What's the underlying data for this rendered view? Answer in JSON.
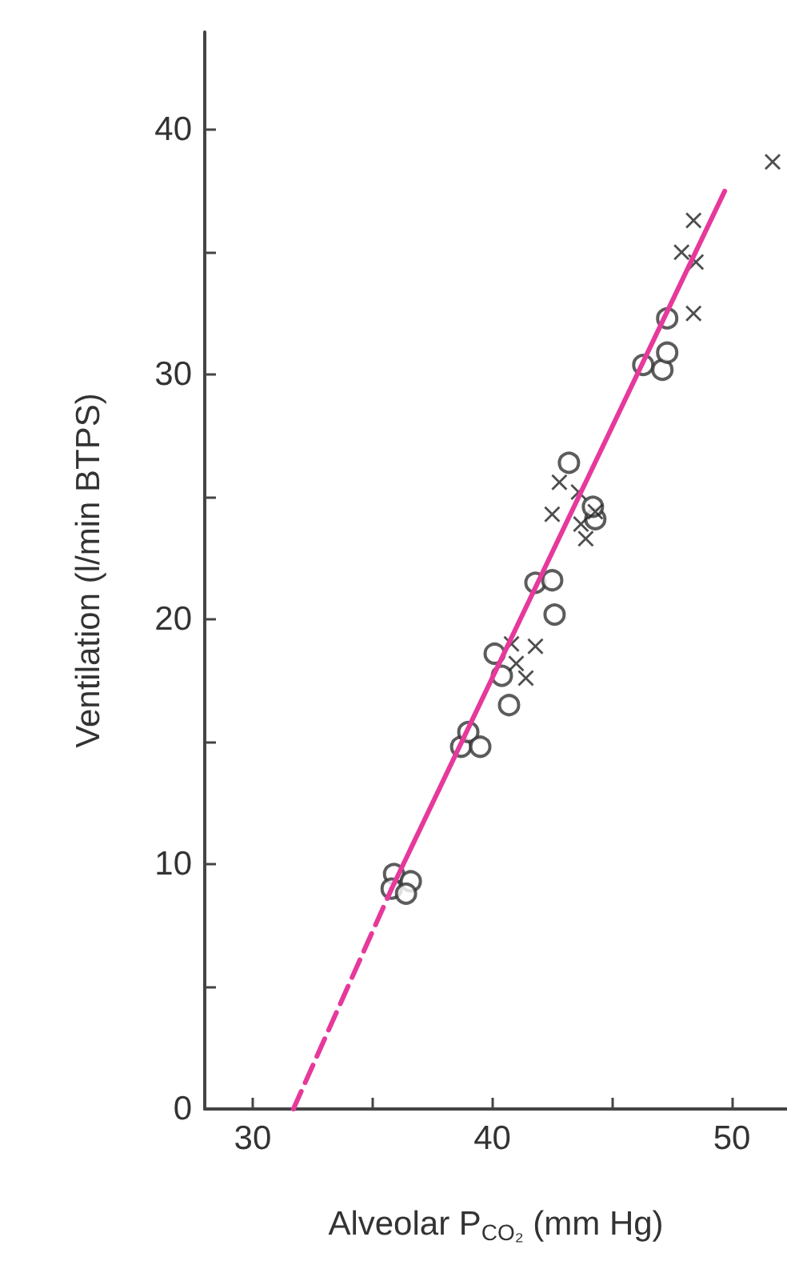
{
  "chart_data": {
    "type": "scatter",
    "xlabel": "Alveolar P$_{CO₂}$ (mm Hg)",
    "ylabel": "Ventilation (l/min BTPS)",
    "xlim": [
      28,
      52.3
    ],
    "ylim": [
      0,
      44
    ],
    "xticks": [
      30,
      {
        "value": 35,
        "label": null
      },
      40,
      {
        "value": 45,
        "label": null
      },
      50
    ],
    "yticks": [
      0,
      {
        "value": 5,
        "label": null
      },
      10,
      {
        "value": 15,
        "label": null
      },
      20,
      {
        "value": 25,
        "label": null
      },
      30,
      {
        "value": 35,
        "label": null
      },
      40
    ],
    "grid": false,
    "series": [
      {
        "marker": "circle",
        "color": "#333333",
        "x": [
          35.9,
          36.6,
          35.8,
          36.4,
          38.7,
          39.0,
          39.5,
          40.7,
          40.4,
          40.1,
          42.6,
          41.8,
          42.5,
          44.3,
          44.2,
          43.2,
          46.3,
          47.1,
          47.3,
          47.3
        ],
        "values": [
          9.6,
          9.3,
          9.0,
          8.8,
          14.8,
          15.4,
          14.8,
          16.5,
          17.7,
          18.6,
          20.2,
          21.5,
          21.6,
          24.1,
          24.6,
          26.4,
          30.4,
          30.2,
          30.9,
          32.3
        ]
      },
      {
        "marker": "cross",
        "color": "#222222",
        "x": [
          40.8,
          41.8,
          41.0,
          41.4,
          42.5,
          42.8,
          43.6,
          43.7,
          43.9,
          44.3,
          48.4,
          47.9,
          48.5,
          48.4,
          51.7
        ],
        "values": [
          19.0,
          18.9,
          18.2,
          17.6,
          24.3,
          25.6,
          25.2,
          23.9,
          23.3,
          24.4,
          32.5,
          35.0,
          34.6,
          36.3,
          38.7
        ]
      },
      {
        "type": "line",
        "color": "#e6399b",
        "line_style": "dashed",
        "marker": "none",
        "x": [
          31.7,
          35.8
        ],
        "values": [
          0,
          9
        ]
      },
      {
        "type": "line",
        "color": "#e6399b",
        "line_style": "solid",
        "marker": "none",
        "x": [
          35.8,
          49.7
        ],
        "values": [
          9,
          37.5
        ]
      }
    ]
  }
}
